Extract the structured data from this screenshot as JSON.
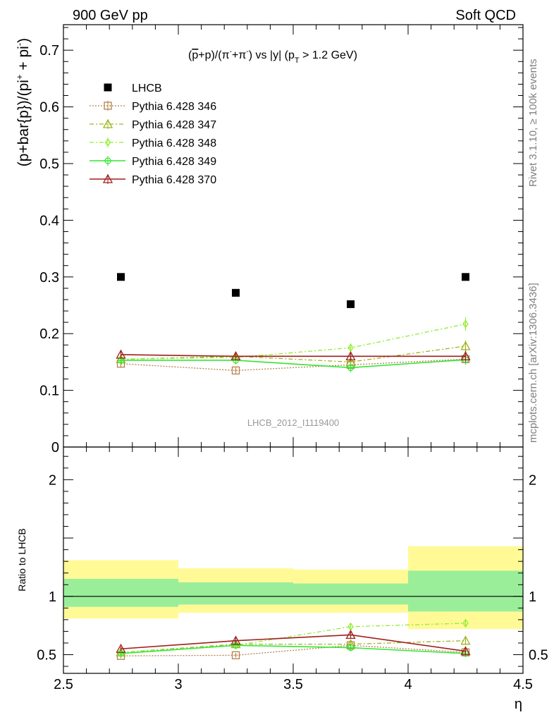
{
  "header": {
    "left": "900 GeV pp",
    "right": "Soft QCD"
  },
  "side_labels": {
    "rivet": "Rivet 3.1.10, ≥ 100k events",
    "mcplots": "mcplots.cern.ch [arXiv:1306.3436]"
  },
  "chart_data": [
    {
      "type": "scatter",
      "title": "(p̄+p)/(π⁻+π⁺) vs |y| (p_T > 1.2 GeV)",
      "title_parts": [
        "(",
        "p",
        "+p)/(π",
        "-",
        "+π",
        "-",
        ") vs |y| (p",
        "T",
        " > 1.2 GeV)"
      ],
      "ylabel": "(p+bar{p})/(pi",
      "ylabel_sup": "+",
      "ylabel_mid": " + pi",
      "ylabel_sup2": "-",
      "ylabel_end": ")",
      "xlim": [
        2.5,
        4.5
      ],
      "ylim": [
        0,
        0.745
      ],
      "y_ticks": [
        0,
        0.1,
        0.2,
        0.3,
        0.4,
        0.5,
        0.6,
        0.7
      ],
      "y_tick_labels": [
        "0",
        "0.1",
        "0.2",
        "0.3",
        "0.4",
        "0.5",
        "0.6",
        "0.7"
      ],
      "watermark": "LHCB_2012_I1119400",
      "legend_position": "top-left",
      "x": [
        2.75,
        3.25,
        3.75,
        4.25
      ],
      "series": [
        {
          "name": "LHCB",
          "color": "#000000",
          "marker": "square-filled",
          "line": "none",
          "values": [
            0.3,
            0.272,
            0.252,
            0.3
          ]
        },
        {
          "name": "Pythia 6.428 346",
          "color": "#b5814a",
          "marker": "square-open",
          "line": "dotted",
          "values": [
            0.147,
            0.135,
            0.145,
            0.155
          ],
          "errors": [
            0.006,
            0.005,
            0.007,
            0.009
          ]
        },
        {
          "name": "Pythia 6.428 347",
          "color": "#a0b41e",
          "marker": "triangle-open",
          "line": "dashdot",
          "values": [
            0.155,
            0.16,
            0.15,
            0.178
          ],
          "errors": [
            0.007,
            0.007,
            0.008,
            0.01
          ]
        },
        {
          "name": "Pythia 6.428 348",
          "color": "#90ee30",
          "marker": "diamond-open",
          "line": "dashdot",
          "values": [
            0.155,
            0.158,
            0.175,
            0.217
          ],
          "errors": [
            0.007,
            0.007,
            0.008,
            0.012
          ]
        },
        {
          "name": "Pythia 6.428 349",
          "color": "#32e632",
          "marker": "circle-cross",
          "line": "solid",
          "values": [
            0.153,
            0.153,
            0.14,
            0.154
          ],
          "errors": [
            0.007,
            0.007,
            0.008,
            0.009
          ]
        },
        {
          "name": "Pythia 6.428 370",
          "color": "#a01e1e",
          "marker": "triangle-open",
          "line": "solid",
          "values": [
            0.163,
            0.16,
            0.16,
            0.16
          ],
          "errors": [
            0.007,
            0.007,
            0.008,
            0.01
          ]
        }
      ]
    },
    {
      "type": "scatter",
      "ylabel": "Ratio to LHCB",
      "xlabel": "η",
      "xlim": [
        2.5,
        4.5
      ],
      "ylim": [
        0.34,
        2.28
      ],
      "x_ticks": [
        2.5,
        3,
        3.5,
        4,
        4.5
      ],
      "x_tick_labels": [
        "2.5",
        "3",
        "3.5",
        "4",
        "4.5"
      ],
      "y_ticks": [
        0.5,
        1,
        2
      ],
      "y_tick_labels": [
        "0.5",
        "1",
        "2"
      ],
      "bands": [
        {
          "x0": 2.5,
          "x1": 3.0,
          "inner": [
            0.91,
            1.15
          ],
          "outer": [
            0.81,
            1.31
          ]
        },
        {
          "x0": 3.0,
          "x1": 3.5,
          "inner": [
            0.93,
            1.12
          ],
          "outer": [
            0.86,
            1.24
          ]
        },
        {
          "x0": 3.5,
          "x1": 4.0,
          "inner": [
            0.93,
            1.11
          ],
          "outer": [
            0.86,
            1.23
          ]
        },
        {
          "x0": 4.0,
          "x1": 4.5,
          "inner": [
            0.87,
            1.22
          ],
          "outer": [
            0.72,
            1.43
          ]
        }
      ],
      "x": [
        2.75,
        3.25,
        3.75,
        4.25
      ],
      "series": [
        {
          "name": "Pythia 6.428 346",
          "values": [
            0.49,
            0.495,
            0.58,
            0.52
          ],
          "errors": [
            0.02,
            0.02,
            0.03,
            0.03
          ]
        },
        {
          "name": "Pythia 6.428 347",
          "values": [
            0.52,
            0.59,
            0.59,
            0.62
          ],
          "errors": [
            0.02,
            0.025,
            0.03,
            0.035
          ]
        },
        {
          "name": "Pythia 6.428 348",
          "values": [
            0.52,
            0.58,
            0.74,
            0.77
          ],
          "errors": [
            0.02,
            0.025,
            0.03,
            0.035
          ]
        },
        {
          "name": "Pythia 6.428 349",
          "values": [
            0.51,
            0.58,
            0.56,
            0.51
          ],
          "errors": [
            0.02,
            0.025,
            0.03,
            0.03
          ]
        },
        {
          "name": "Pythia 6.428 370",
          "values": [
            0.55,
            0.62,
            0.67,
            0.53
          ],
          "errors": [
            0.02,
            0.025,
            0.03,
            0.035
          ]
        }
      ]
    }
  ]
}
